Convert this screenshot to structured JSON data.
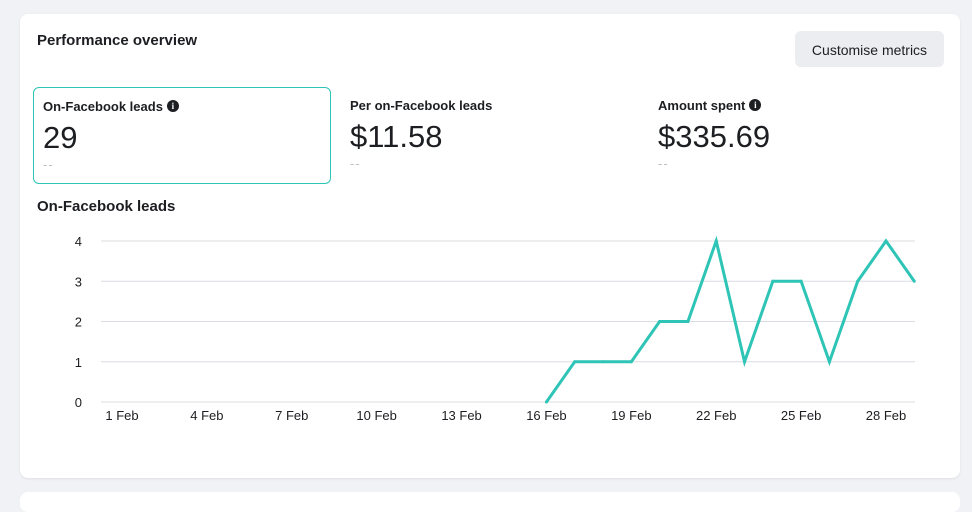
{
  "card": {
    "title": "Performance overview",
    "customise_label": "Customise metrics"
  },
  "metrics": [
    {
      "label": "On-Facebook leads",
      "value": "29",
      "delta": "--",
      "has_info": true,
      "selected": true
    },
    {
      "label": "Per on-Facebook leads",
      "value": "$11.58",
      "delta": "--",
      "has_info": false,
      "selected": false
    },
    {
      "label": "Amount spent",
      "value": "$335.69",
      "delta": "--",
      "has_info": true,
      "selected": false
    }
  ],
  "colors": {
    "accent": "#2ec4b6",
    "grid": "#dadde1",
    "background": "#f0f2f5"
  },
  "chart_data": {
    "type": "line",
    "title": "On-Facebook leads",
    "ylim": [
      0,
      4
    ],
    "yticks": [
      0,
      1,
      2,
      3,
      4
    ],
    "grid": true,
    "x_tick_labels": [
      "1 Feb",
      "4 Feb",
      "7 Feb",
      "10 Feb",
      "13 Feb",
      "16 Feb",
      "19 Feb",
      "22 Feb",
      "25 Feb",
      "28 Feb"
    ],
    "x_tick_days": [
      1,
      4,
      7,
      10,
      13,
      16,
      19,
      22,
      25,
      28
    ],
    "series": [
      {
        "days": [
          16,
          17,
          18,
          19,
          20,
          21,
          22,
          23,
          24,
          25,
          26,
          27,
          28,
          29
        ],
        "values": [
          0,
          1,
          1,
          1,
          2,
          2,
          4,
          1,
          3,
          3,
          1,
          3,
          4,
          3
        ]
      }
    ]
  }
}
